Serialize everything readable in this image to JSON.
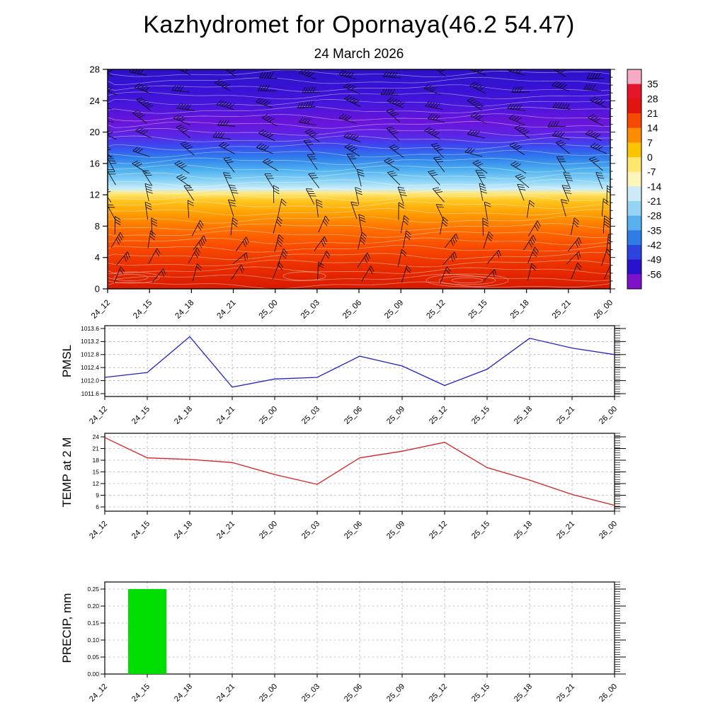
{
  "title": "Kazhydromet for Opornaya(46.2 54.47)",
  "subtitle": "24 March 2026",
  "time_labels": [
    "24_12",
    "24_15",
    "24_18",
    "24_21",
    "25_00",
    "25_03",
    "25_06",
    "25_09",
    "25_12",
    "25_15",
    "25_18",
    "25_21",
    "26_00"
  ],
  "chart_data": [
    {
      "type": "heatmap",
      "name": "temperature-height-cross-section",
      "title": "Time-height temperature cross-section with wind barbs",
      "x": [
        "24_12",
        "24_15",
        "24_18",
        "24_21",
        "25_00",
        "25_03",
        "25_06",
        "25_09",
        "25_12",
        "25_15",
        "25_18",
        "25_21",
        "26_00"
      ],
      "ylim": [
        0,
        28
      ],
      "yticks": [
        0,
        4,
        8,
        12,
        16,
        20,
        24,
        28
      ],
      "colorbar_ticks": [
        "35",
        "28",
        "21",
        "14",
        "7",
        "0",
        "-7",
        "-14",
        "-21",
        "-28",
        "-35",
        "-42",
        "-49",
        "-56"
      ],
      "colorbar_colors": [
        "#f5aac6",
        "#e61428",
        "#e0150e",
        "#f64a00",
        "#ff8c00",
        "#ffc400",
        "#ffe76e",
        "#fdf4bc",
        "#cdeaf8",
        "#97d4f4",
        "#58b0ee",
        "#2f7ce6",
        "#2c44dc",
        "#2a12cc",
        "#7e12ca"
      ],
      "gradient_stops": [
        {
          "pos": 0.0,
          "color": "#2c12c8"
        },
        {
          "pos": 0.08,
          "color": "#3712d4"
        },
        {
          "pos": 0.16,
          "color": "#4616dc"
        },
        {
          "pos": 0.24,
          "color": "#6b14da"
        },
        {
          "pos": 0.3,
          "color": "#5c24e6"
        },
        {
          "pos": 0.35,
          "color": "#3b4af0"
        },
        {
          "pos": 0.4,
          "color": "#2e7cec"
        },
        {
          "pos": 0.46,
          "color": "#4fb2f0"
        },
        {
          "pos": 0.51,
          "color": "#8ed5f6"
        },
        {
          "pos": 0.545,
          "color": "#cdeef8"
        },
        {
          "pos": 0.565,
          "color": "#ffe87c"
        },
        {
          "pos": 0.6,
          "color": "#ffc51c"
        },
        {
          "pos": 0.66,
          "color": "#ff9c00"
        },
        {
          "pos": 0.73,
          "color": "#ff6e00"
        },
        {
          "pos": 0.81,
          "color": "#f94a00"
        },
        {
          "pos": 0.9,
          "color": "#ea2e00"
        },
        {
          "pos": 1.0,
          "color": "#d81a00"
        }
      ],
      "wind_levels": [
        {
          "y": 1,
          "angle": 22,
          "feathers": 2
        },
        {
          "y": 3,
          "angle": 30,
          "feathers": 2
        },
        {
          "y": 5,
          "angle": 24,
          "feathers": 3
        },
        {
          "y": 7,
          "angle": 10,
          "feathers": 3
        },
        {
          "y": 9,
          "angle": -8,
          "feathers": 2
        },
        {
          "y": 11,
          "angle": -20,
          "feathers": 3
        },
        {
          "y": 13,
          "angle": -34,
          "feathers": 3
        },
        {
          "y": 15,
          "angle": -46,
          "feathers": 3
        },
        {
          "y": 17,
          "angle": -56,
          "feathers": 3
        },
        {
          "y": 19,
          "angle": -64,
          "feathers": 4
        },
        {
          "y": 21,
          "angle": -70,
          "feathers": 4
        },
        {
          "y": 23,
          "angle": -74,
          "feathers": 5
        },
        {
          "y": 25,
          "angle": -78,
          "feathers": 4
        },
        {
          "y": 27,
          "angle": -72,
          "feathers": 5
        }
      ]
    },
    {
      "type": "line",
      "name": "pmsl",
      "ylabel": "PMSL",
      "color": "#2222c8",
      "ylim": [
        1011.6,
        1013.6
      ],
      "yticks": [
        1011.6,
        1012.0,
        1012.4,
        1012.8,
        1013.2,
        1013.6
      ],
      "ytick_labels": [
        "1011.6",
        "1012.0",
        "1012.4",
        "1012.8",
        "1013.2",
        "1013.6"
      ],
      "x": [
        "24_12",
        "24_15",
        "24_18",
        "24_21",
        "25_00",
        "25_03",
        "25_06",
        "25_09",
        "25_12",
        "25_15",
        "25_18",
        "25_21",
        "26_00"
      ],
      "values": [
        1012.1,
        1012.25,
        1013.35,
        1011.8,
        1012.05,
        1012.1,
        1012.75,
        1012.45,
        1011.85,
        1012.35,
        1013.3,
        1013.0,
        1012.8
      ]
    },
    {
      "type": "line",
      "name": "temp2m",
      "ylabel": "TEMP at 2 M",
      "color": "#d82020",
      "ylim": [
        6,
        24
      ],
      "yticks": [
        6,
        9,
        12,
        15,
        18,
        21,
        24
      ],
      "ytick_labels": [
        "6",
        "9",
        "12",
        "15",
        "18",
        "21",
        "24"
      ],
      "x": [
        "24_12",
        "24_15",
        "24_18",
        "24_21",
        "25_00",
        "25_03",
        "25_06",
        "25_09",
        "25_12",
        "25_15",
        "25_18",
        "25_21",
        "26_00"
      ],
      "values": [
        23.8,
        18.6,
        18.2,
        17.4,
        14.3,
        11.8,
        18.6,
        20.3,
        22.6,
        16.1,
        12.9,
        9.2,
        6.4
      ]
    },
    {
      "type": "bar",
      "name": "precip",
      "ylabel": "PRECIP, mm",
      "color": "#00dd00",
      "ylim": [
        0,
        0.25
      ],
      "yticks": [
        0.0,
        0.05,
        0.1,
        0.15,
        0.2,
        0.25
      ],
      "ytick_labels": [
        "0.00",
        "0.05",
        "0.10",
        "0.15",
        "0.20",
        "0.25"
      ],
      "x": [
        "24_12",
        "24_15",
        "24_18",
        "24_21",
        "25_00",
        "25_03",
        "25_06",
        "25_09",
        "25_12",
        "25_15",
        "25_18",
        "25_21",
        "26_00"
      ],
      "values": [
        0,
        0.25,
        0,
        0,
        0,
        0,
        0,
        0,
        0,
        0,
        0,
        0,
        0
      ]
    }
  ]
}
